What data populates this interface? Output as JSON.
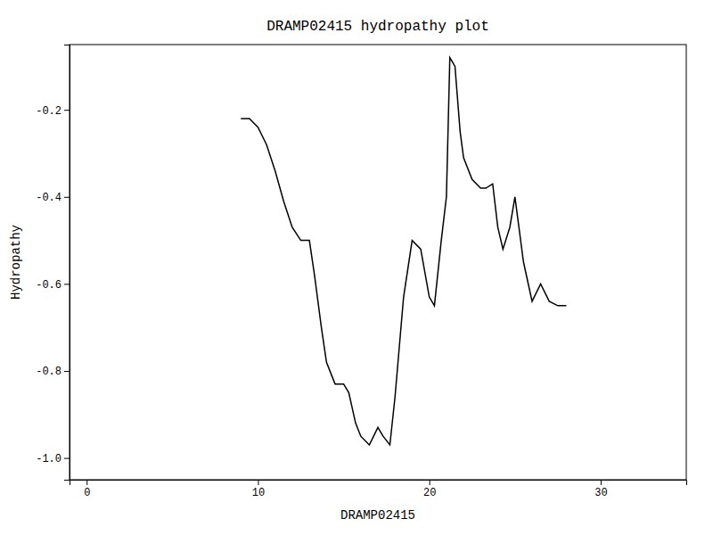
{
  "chart_data": {
    "type": "line",
    "title": "DRAMP02415 hydropathy plot",
    "xlabel": "DRAMP02415",
    "ylabel": "Hydropathy",
    "xlim": [
      -1,
      35
    ],
    "ylim": [
      -1.05,
      -0.05
    ],
    "xticks": [
      0,
      10,
      20,
      30
    ],
    "yticks": [
      {
        "value": -1.0,
        "label": "-1.0"
      },
      -0.8,
      -0.6,
      -0.4,
      -0.2
    ],
    "color": "black",
    "x": [
      9.0,
      9.5,
      10.0,
      10.5,
      11.0,
      11.5,
      12.0,
      12.5,
      13.0,
      13.3,
      13.7,
      14.0,
      14.5,
      15.0,
      15.3,
      15.7,
      16.0,
      16.5,
      17.0,
      17.3,
      17.7,
      18.0,
      18.5,
      19.0,
      19.5,
      20.0,
      20.3,
      20.7,
      21.0,
      21.2,
      21.5,
      21.8,
      22.0,
      22.5,
      23.0,
      23.3,
      23.7,
      24.0,
      24.3,
      24.7,
      25.0,
      25.5,
      26.0,
      26.5,
      27.0,
      27.5,
      28.0
    ],
    "values": [
      -0.22,
      -0.22,
      -0.24,
      -0.28,
      -0.34,
      -0.41,
      -0.47,
      -0.5,
      -0.5,
      -0.58,
      -0.7,
      -0.78,
      -0.83,
      -0.83,
      -0.85,
      -0.92,
      -0.95,
      -0.97,
      -0.93,
      -0.95,
      -0.97,
      -0.86,
      -0.63,
      -0.5,
      -0.52,
      -0.63,
      -0.65,
      -0.5,
      -0.4,
      -0.08,
      -0.1,
      -0.25,
      -0.31,
      -0.36,
      -0.38,
      -0.38,
      -0.37,
      -0.47,
      -0.52,
      -0.47,
      -0.4,
      -0.55,
      -0.64,
      -0.6,
      -0.64,
      -0.65,
      -0.65
    ]
  }
}
